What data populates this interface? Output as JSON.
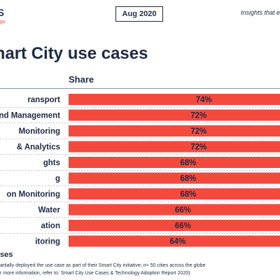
{
  "header": {
    "brand_logo": "S",
    "brand_tagline": "ngs",
    "date_badge": "Aug 2020",
    "tagline": "Insights that e"
  },
  "title": "mart City use cases",
  "footer": {
    "title": "ses",
    "note_1": "artially deployed the use case as part of their Smart City initiative; n= 50 cities across the globe",
    "note_2": "r more information, refer to: Smart City Use Cases & Technology Adoption Report 2020)"
  },
  "colors": {
    "bar": "#f44a3e",
    "text": "#1f2a44",
    "divider": "#8a92a3"
  },
  "chart_data": {
    "type": "bar",
    "orientation": "horizontal",
    "column_header": "Share",
    "categories": [
      "ransport",
      "and Management",
      " Monitoring",
      "& Analytics",
      "ghts",
      "g",
      "on Monitoring",
      "Water",
      "ation",
      "itoring"
    ],
    "values": [
      74,
      72,
      72,
      72,
      68,
      68,
      68,
      66,
      66,
      64
    ],
    "value_labels": [
      "74%",
      "72%",
      "72%",
      "72%",
      "68%",
      "68%",
      "68%",
      "66%",
      "66%",
      "64%"
    ],
    "xlim": [
      0,
      100
    ],
    "grid": false,
    "legend": "none"
  }
}
